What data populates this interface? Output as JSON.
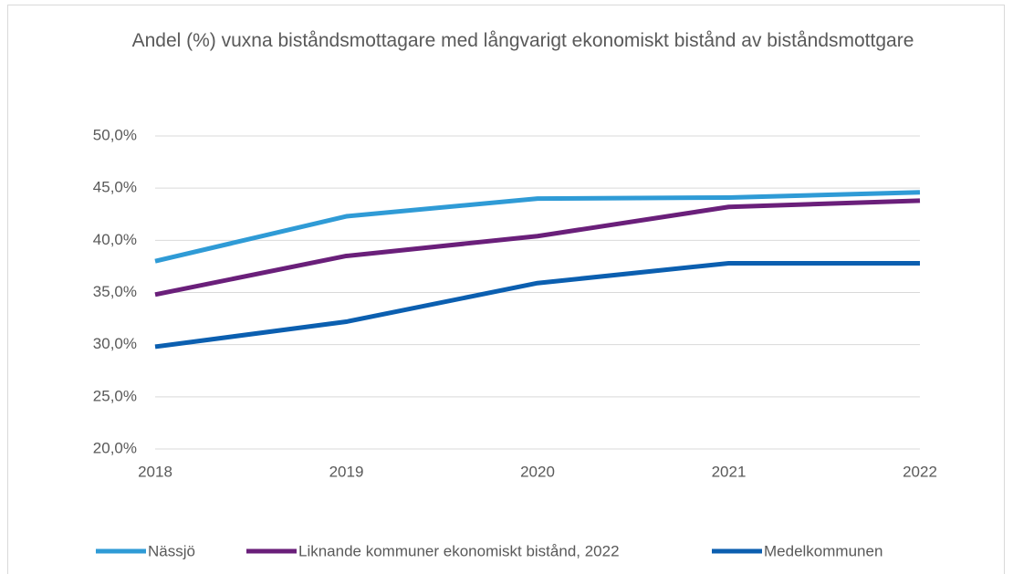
{
  "chart_data": {
    "type": "line",
    "title": "Andel (%) vuxna biståndsmottagare med långvarigt ekonomiskt bistånd av biståndsmottgare",
    "categories": [
      "2018",
      "2019",
      "2020",
      "2021",
      "2022"
    ],
    "series": [
      {
        "name": "Nässjö",
        "color": "#2f9bd6",
        "values": [
          38.0,
          42.3,
          44.0,
          44.1,
          44.6
        ]
      },
      {
        "name": "Liknande kommuner ekonomiskt bistånd, 2022",
        "color": "#6a1f7a",
        "values": [
          34.8,
          38.5,
          40.4,
          43.2,
          43.8
        ]
      },
      {
        "name": "Medelkommunen",
        "color": "#0b5fb0",
        "values": [
          29.8,
          32.2,
          35.9,
          37.8,
          37.8
        ]
      }
    ],
    "ylim": [
      20,
      50
    ],
    "yticks": [
      {
        "value": 20,
        "label": "20,0%"
      },
      {
        "value": 25,
        "label": "25,0%"
      },
      {
        "value": 30,
        "label": "30,0%"
      },
      {
        "value": 35,
        "label": "35,0%"
      },
      {
        "value": 40,
        "label": "40,0%"
      },
      {
        "value": 45,
        "label": "45,0%"
      },
      {
        "value": 50,
        "label": "50,0%"
      }
    ],
    "grid": true,
    "legend": "bottom"
  }
}
